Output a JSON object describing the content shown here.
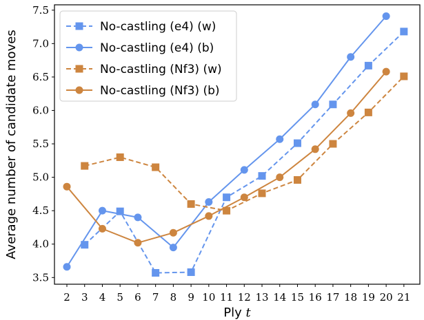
{
  "chart_data": {
    "type": "line",
    "title": "",
    "xlabel": "Ply",
    "xlabel_var": "t",
    "ylabel": "Average number of candidate moves",
    "xlim": [
      1.3,
      21.9
    ],
    "ylim": [
      3.4,
      7.58
    ],
    "xticks": [
      2,
      3,
      4,
      5,
      6,
      7,
      8,
      9,
      10,
      11,
      12,
      13,
      14,
      15,
      16,
      17,
      18,
      19,
      20,
      21
    ],
    "yticks": [
      "3.5",
      "4.0",
      "4.5",
      "5.0",
      "5.5",
      "6.0",
      "6.5",
      "7.0",
      "7.5"
    ],
    "grid": false,
    "legend_position": "top-left",
    "series": [
      {
        "name": "No-castling (e4) (w)",
        "color": "#6495ED",
        "linestyle": "dashed",
        "marker": "square",
        "x": [
          3,
          5,
          7,
          9,
          11,
          13,
          15,
          17,
          19,
          21
        ],
        "y": [
          3.99,
          4.49,
          3.57,
          3.58,
          4.7,
          5.02,
          5.51,
          6.09,
          6.67,
          7.18
        ]
      },
      {
        "name": "No-castling (e4) (b)",
        "color": "#6495ED",
        "linestyle": "solid",
        "marker": "circle",
        "x": [
          2,
          4,
          6,
          8,
          10,
          12,
          14,
          16,
          18,
          20
        ],
        "y": [
          3.66,
          4.5,
          4.4,
          3.95,
          4.63,
          5.11,
          5.57,
          6.09,
          6.8,
          7.41
        ]
      },
      {
        "name": "No-castling (Nf3) (w)",
        "color": "#CD853F",
        "linestyle": "dashed",
        "marker": "square",
        "x": [
          3,
          5,
          7,
          9,
          11,
          13,
          15,
          17,
          19,
          21
        ],
        "y": [
          5.17,
          5.3,
          5.15,
          4.6,
          4.5,
          4.76,
          4.96,
          5.5,
          5.97,
          6.51
        ]
      },
      {
        "name": "No-castling (Nf3) (b)",
        "color": "#CD853F",
        "linestyle": "solid",
        "marker": "circle",
        "x": [
          2,
          4,
          6,
          8,
          10,
          12,
          14,
          16,
          18,
          20
        ],
        "y": [
          4.86,
          4.23,
          4.02,
          4.17,
          4.42,
          4.7,
          5.0,
          5.42,
          5.96,
          6.58
        ]
      }
    ]
  }
}
